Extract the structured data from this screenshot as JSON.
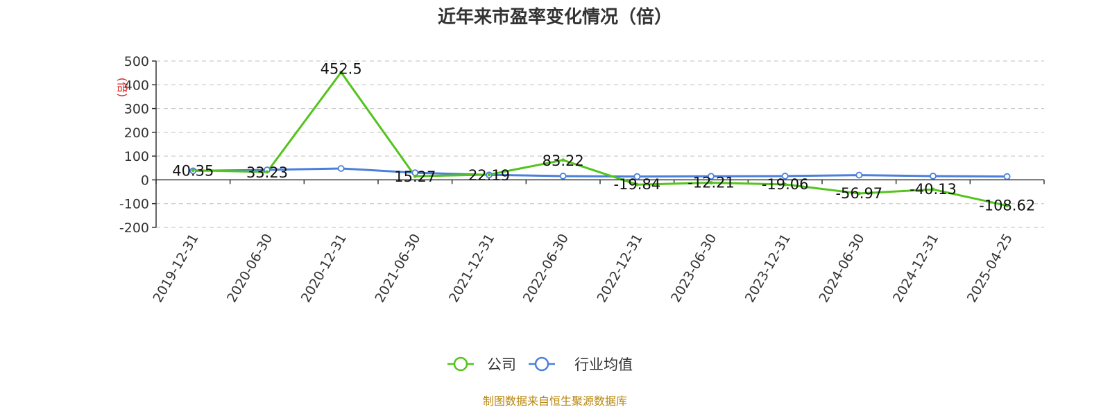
{
  "chart_data": {
    "type": "line",
    "title": "近年来市盈率变化情况（倍）",
    "ylabel": "(倍)",
    "ylim": [
      -200,
      500
    ],
    "yticks": [
      -200,
      -100,
      0,
      100,
      200,
      300,
      400,
      500
    ],
    "grid": true,
    "legend_position": "bottom",
    "categories": [
      "2019-12-31",
      "2020-06-30",
      "2020-12-31",
      "2021-06-30",
      "2021-12-31",
      "2022-06-30",
      "2022-12-31",
      "2023-06-30",
      "2023-12-31",
      "2024-06-30",
      "2024-12-31",
      "2025-04-25"
    ],
    "series": [
      {
        "name": "公司",
        "color": "#52c41a",
        "values": [
          40.35,
          33.23,
          452.5,
          15.27,
          22.19,
          83.22,
          -19.84,
          -12.21,
          -19.06,
          -56.97,
          -40.13,
          -108.62
        ],
        "labels": [
          "40.35",
          "33.23",
          "452.5",
          "15.27",
          "22.19",
          "83.22",
          "-19.84",
          "-12.21",
          "-19.06",
          "-56.97",
          "-40.13",
          "-108.62"
        ]
      },
      {
        "name": "行业均值",
        "color": "#4a7fdc",
        "values": [
          38,
          42,
          48,
          30,
          21,
          16,
          14,
          15,
          16,
          20,
          16,
          14
        ]
      }
    ],
    "source": "制图数据来自恒生聚源数据库"
  }
}
